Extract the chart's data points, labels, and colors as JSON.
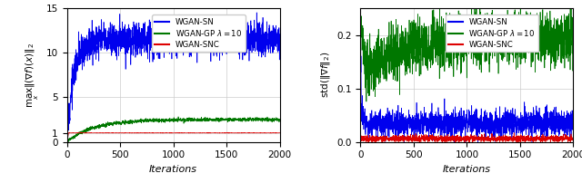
{
  "xlabel": "Iterations",
  "xlim": [
    0,
    2000
  ],
  "left_ylim": [
    0,
    15
  ],
  "right_ylim": [
    0,
    0.25
  ],
  "left_yticks": [
    0,
    1,
    5,
    10,
    15
  ],
  "right_yticks": [
    0.0,
    0.1,
    0.2
  ],
  "xticks": [
    0,
    500,
    1000,
    1500,
    2000
  ],
  "colors": {
    "WGAN-SN": "#0000ee",
    "WGAN-GP": "#007700",
    "WGAN-SNC": "#dd0000"
  },
  "legend_labels": [
    "WGAN-SN",
    "WGAN-GP $\\lambda = 10$",
    "WGAN-SNC"
  ],
  "seed": 12,
  "n_points": 2000
}
